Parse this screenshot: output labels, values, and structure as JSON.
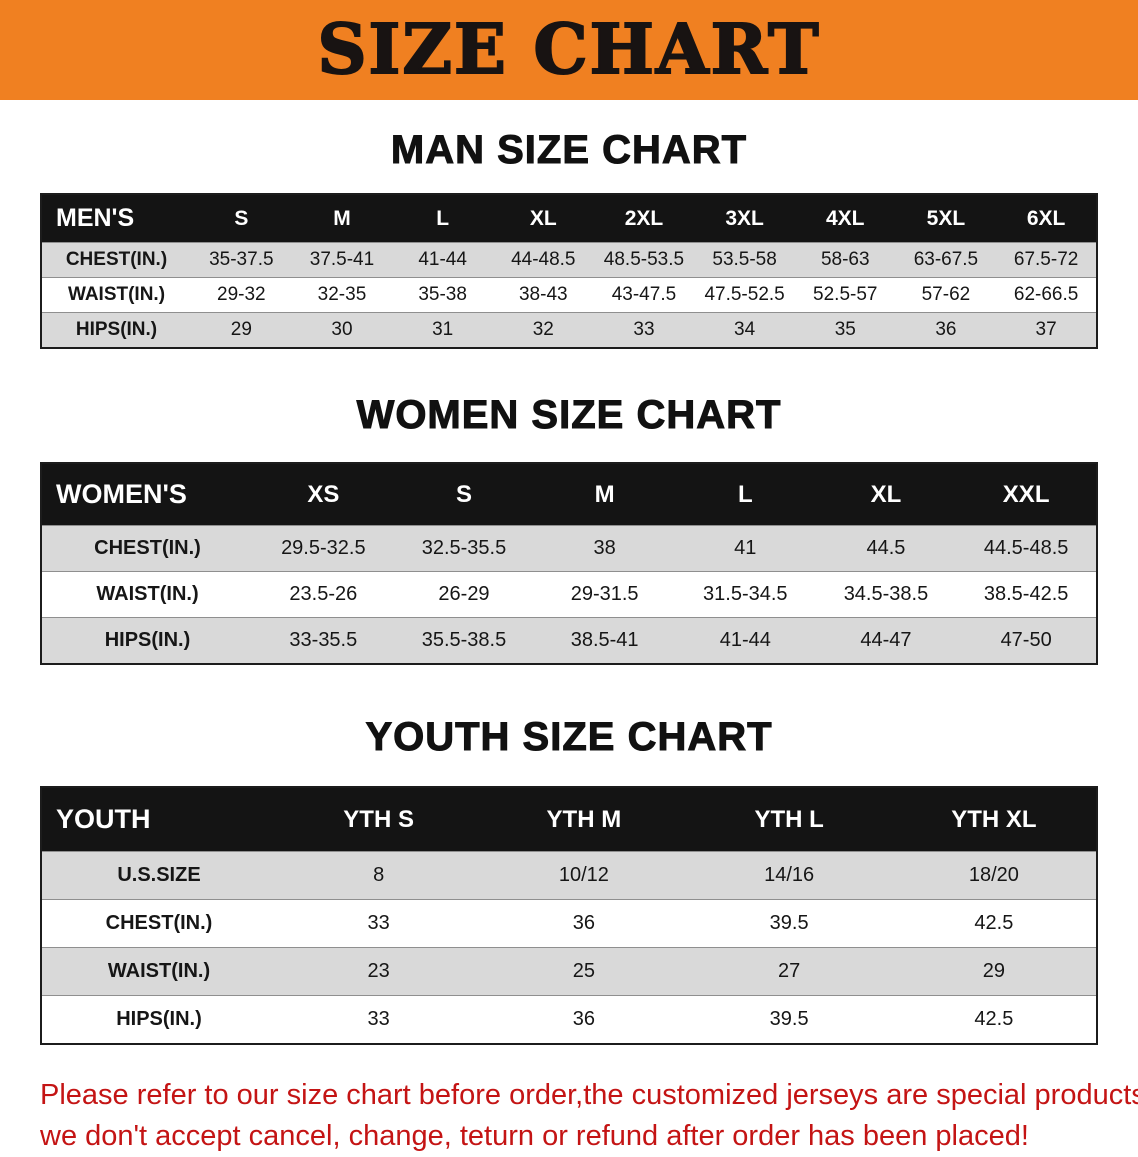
{
  "banner": {
    "title": "SIZE CHART"
  },
  "colors": {
    "banner_bg": "#f08021",
    "table_header_bg": "#141414",
    "row_stripe": "#d9d9d9",
    "notice_text": "#c41414"
  },
  "chart_data": [
    {
      "type": "table",
      "title": "MAN SIZE CHART",
      "columns": [
        "MEN'S",
        "S",
        "M",
        "L",
        "XL",
        "2XL",
        "3XL",
        "4XL",
        "5XL",
        "6XL"
      ],
      "rows": [
        [
          "CHEST(IN.)",
          "35-37.5",
          "37.5-41",
          "41-44",
          "44-48.5",
          "48.5-53.5",
          "53.5-58",
          "58-63",
          "63-67.5",
          "67.5-72"
        ],
        [
          "WAIST(IN.)",
          "29-32",
          "32-35",
          "35-38",
          "38-43",
          "43-47.5",
          "47.5-52.5",
          "52.5-57",
          "57-62",
          "62-66.5"
        ],
        [
          "HIPS(IN.)",
          "29",
          "30",
          "31",
          "32",
          "33",
          "34",
          "35",
          "36",
          "37"
        ]
      ]
    },
    {
      "type": "table",
      "title": "WOMEN SIZE CHART",
      "columns": [
        "WOMEN'S",
        "XS",
        "S",
        "M",
        "L",
        "XL",
        "XXL"
      ],
      "rows": [
        [
          "CHEST(IN.)",
          "29.5-32.5",
          "32.5-35.5",
          "38",
          "41",
          "44.5",
          "44.5-48.5"
        ],
        [
          "WAIST(IN.)",
          "23.5-26",
          "26-29",
          "29-31.5",
          "31.5-34.5",
          "34.5-38.5",
          "38.5-42.5"
        ],
        [
          "HIPS(IN.)",
          "33-35.5",
          "35.5-38.5",
          "38.5-41",
          "41-44",
          "44-47",
          "47-50"
        ]
      ]
    },
    {
      "type": "table",
      "title": "YOUTH SIZE CHART",
      "columns": [
        "YOUTH",
        "YTH S",
        "YTH M",
        "YTH L",
        "YTH XL"
      ],
      "rows": [
        [
          "U.S.SIZE",
          "8",
          "10/12",
          "14/16",
          "18/20"
        ],
        [
          "CHEST(IN.)",
          "33",
          "36",
          "39.5",
          "42.5"
        ],
        [
          "WAIST(IN.)",
          "23",
          "25",
          "27",
          "29"
        ],
        [
          "HIPS(IN.)",
          "33",
          "36",
          "39.5",
          "42.5"
        ]
      ]
    }
  ],
  "footer": {
    "lines": [
      "Please refer to our size chart before order,the customized jerseys are special products,",
      "we don't accept cancel, change, teturn or refund after order has been placed!"
    ]
  }
}
